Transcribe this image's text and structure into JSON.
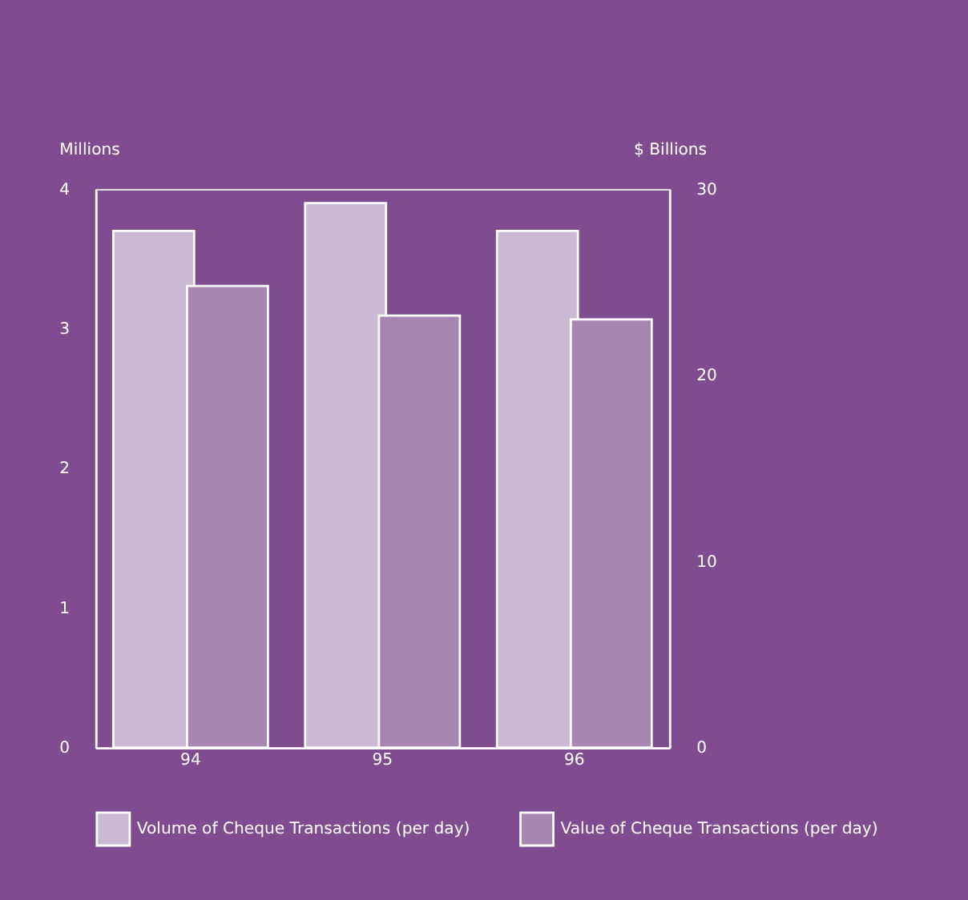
{
  "chart_data": {
    "type": "bar",
    "categories": [
      "94",
      "95",
      "96"
    ],
    "ylabel": "Millions",
    "y2label": "$ Billions",
    "series": [
      {
        "name": "Volume of Cheque Transactions (per day)",
        "color": "#cbbad6",
        "values": [
          3.7,
          3.9,
          3.7
        ]
      },
      {
        "name": "Value of Cheque Transactions (per day)",
        "color": "#a985b2",
        "values": [
          24.8,
          23.2,
          23.0
        ],
        "axis": "y2"
      }
    ],
    "ylim": [
      0,
      4
    ],
    "yticks": [
      0,
      1,
      2,
      3,
      4
    ],
    "y2lim": [
      0,
      30
    ],
    "y2ticks": [
      0,
      10,
      20,
      30
    ],
    "grid": false,
    "legend": "bottom"
  }
}
